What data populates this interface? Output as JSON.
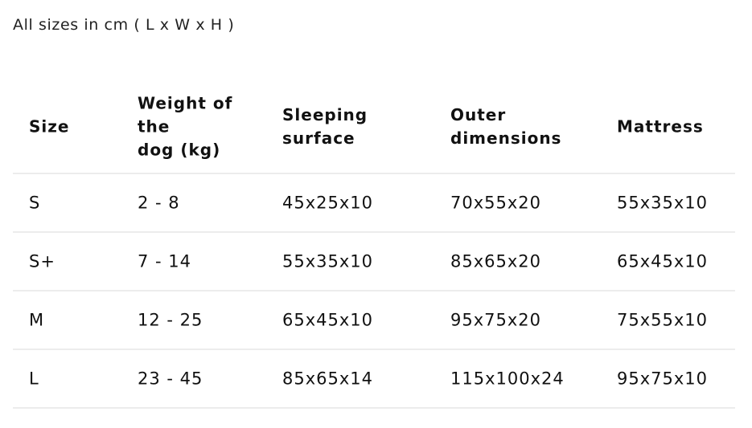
{
  "note": "All sizes in cm ( L x W x H )",
  "headers": [
    [
      "Size"
    ],
    [
      "Weight of",
      "the",
      "dog (kg)"
    ],
    [
      "Sleeping",
      "surface"
    ],
    [
      "Outer",
      "dimensions"
    ],
    [
      "Mattress"
    ]
  ],
  "rows": [
    [
      "S",
      "2 - 8",
      "45x25x10",
      "70x55x20",
      "55x35x10"
    ],
    [
      "S+",
      "7 - 14",
      "55x35x10",
      "85x65x20",
      "65x45x10"
    ],
    [
      "M",
      "12 - 25",
      "65x45x10",
      "95x75x20",
      "75x55x10"
    ],
    [
      "L",
      "23 - 45",
      "85x65x14",
      "115x100x24",
      "95x75x10"
    ]
  ]
}
